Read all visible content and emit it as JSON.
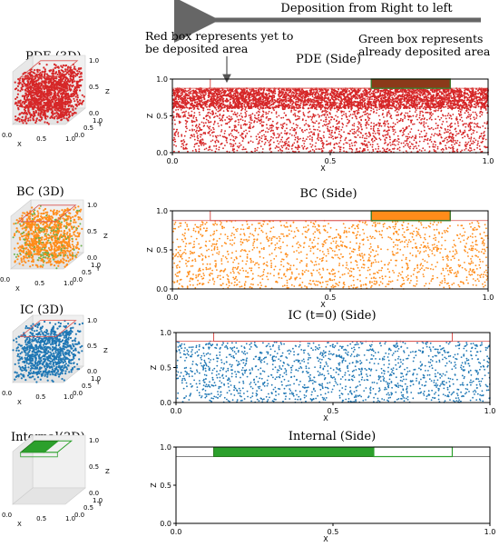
{
  "header": {
    "arrow_text": "Deposition from Right  to left",
    "red_note": [
      "Red box represents yet to",
      "be deposited area"
    ],
    "green_note": [
      "Green box represents",
      "already deposited area"
    ]
  },
  "colors": {
    "pde": "#d62728",
    "bc": "#ff8c1a",
    "ic": "#1f77b4",
    "internal": "#2ca02c",
    "red_box": "#d9534f",
    "arrow": "#666666"
  },
  "panels_3d": [
    {
      "title": "PDE (3D)",
      "points": "pde",
      "x_ticks": [
        "0.0",
        "0.5",
        "1.0"
      ],
      "y_ticks": [
        "0.0",
        "0.5",
        "1.0"
      ],
      "z_ticks": [
        "0.0",
        "0.5",
        "1.0"
      ],
      "xlabel": "X",
      "ylabel": "Y",
      "zlabel": "Z"
    },
    {
      "title": "BC (3D)",
      "points": "bc",
      "x_ticks": [
        "0.0",
        "0.5",
        "1.0"
      ],
      "y_ticks": [
        "0.0",
        "0.5",
        "1.0"
      ],
      "z_ticks": [
        "0.0",
        "0.5",
        "1.0"
      ],
      "xlabel": "X",
      "ylabel": "Y",
      "zlabel": "Z"
    },
    {
      "title": "IC (3D)",
      "points": "ic",
      "x_ticks": [
        "0.0",
        "0.5",
        "1.0"
      ],
      "y_ticks": [
        "0.0",
        "0.5",
        "1.0"
      ],
      "z_ticks": [
        "0.0",
        "0.5",
        "1.0"
      ],
      "xlabel": "X",
      "ylabel": "Y",
      "zlabel": "Z"
    },
    {
      "title": "Internal(3D)",
      "points": "internal",
      "x_ticks": [
        "0.0",
        "0.5",
        "1.0"
      ],
      "y_ticks": [
        "0.0",
        "0.5",
        "1.0"
      ],
      "z_ticks": [
        "0.0",
        "0.5",
        "1.0"
      ],
      "xlabel": "X",
      "ylabel": "Y",
      "zlabel": "Z"
    }
  ],
  "chart_data": [
    {
      "type": "scatter",
      "title": "PDE (Side)",
      "series_color": "pde",
      "xlabel": "X",
      "ylabel": "Z",
      "xlim": [
        0.0,
        1.0
      ],
      "ylim": [
        0.0,
        1.0
      ],
      "x_ticks": [
        "0.0",
        "0.5",
        "1.0"
      ],
      "y_ticks": [
        "0.0",
        "0.5",
        "1.0"
      ],
      "fill_top": 0.875,
      "dense_band": [
        0.6,
        0.875
      ],
      "density": "high",
      "red_box_x": [
        0.12,
        0.88
      ],
      "red_box_y": [
        0.875,
        1.0
      ],
      "green_box_x": [
        0.63,
        0.88
      ],
      "green_box_y": [
        0.875,
        1.0
      ],
      "green_box_fill": "#8b3a1a"
    },
    {
      "type": "scatter",
      "title": "BC  (Side)",
      "series_color": "bc",
      "xlabel": "X",
      "ylabel": "Z",
      "xlim": [
        0.0,
        1.0
      ],
      "ylim": [
        0.0,
        1.0
      ],
      "x_ticks": [
        "0.0",
        "0.5",
        "1.0"
      ],
      "y_ticks": [
        "0.0",
        "0.5",
        "1.0"
      ],
      "fill_top": 0.875,
      "density": "medium",
      "red_box_x": [
        0.12,
        0.88
      ],
      "red_box_y": [
        0.875,
        1.0
      ],
      "green_box_x": [
        0.63,
        0.88
      ],
      "green_box_y": [
        0.875,
        1.0
      ],
      "green_box_fill": "#ff8c1a"
    },
    {
      "type": "scatter",
      "title": "IC (t=0) (Side)",
      "series_color": "ic",
      "xlabel": "X",
      "ylabel": "Z",
      "xlim": [
        0.0,
        1.0
      ],
      "ylim": [
        0.0,
        1.0
      ],
      "x_ticks": [
        "0.0",
        "0.5",
        "1.0"
      ],
      "y_ticks": [
        "0.0",
        "0.5",
        "1.0"
      ],
      "fill_top": 0.875,
      "density": "medium",
      "red_box_x": [
        0.12,
        0.88
      ],
      "red_box_y": [
        0.875,
        1.0
      ]
    },
    {
      "type": "scatter",
      "title": "Internal (Side)",
      "series_color": "internal",
      "xlabel": "X",
      "ylabel": "Z",
      "xlim": [
        0.0,
        1.0
      ],
      "ylim": [
        0.0,
        1.0
      ],
      "x_ticks": [
        "0.0",
        "0.5",
        "1.0"
      ],
      "y_ticks": [
        "0.0",
        "0.5",
        "1.0"
      ],
      "line_y": 0.875,
      "solid_box_x": [
        0.12,
        0.63
      ],
      "solid_box_y": [
        0.875,
        1.0
      ],
      "outline_box_x": [
        0.63,
        0.88
      ],
      "outline_box_y": [
        0.875,
        1.0
      ]
    }
  ]
}
